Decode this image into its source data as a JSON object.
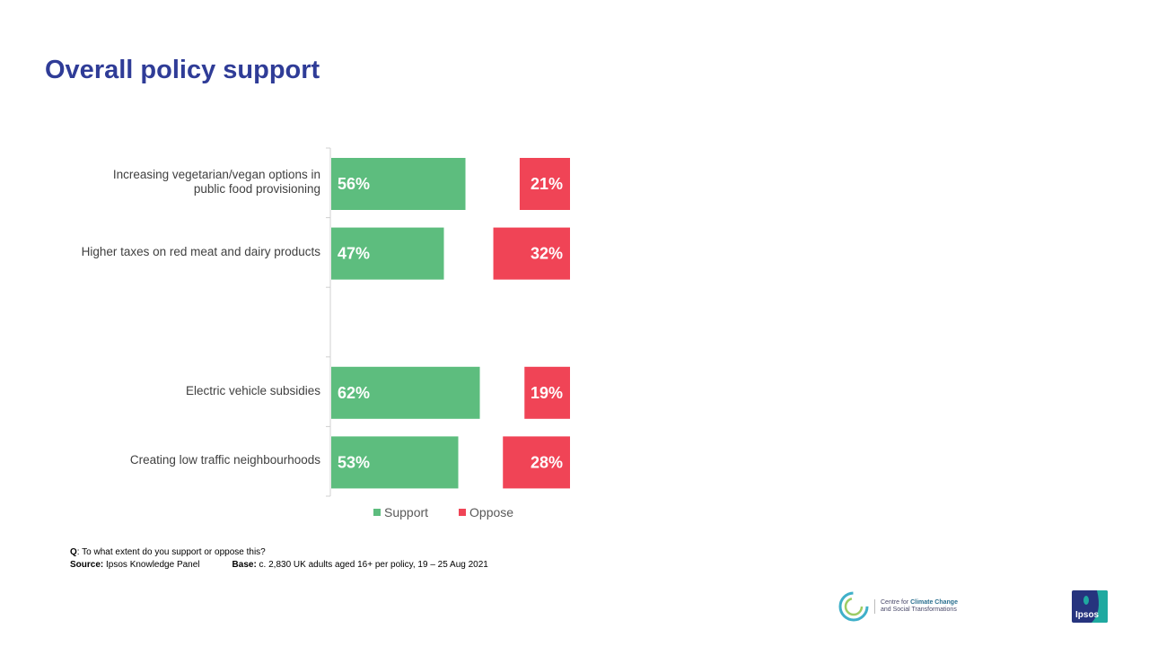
{
  "page": {
    "title": "Overall policy support"
  },
  "chart_data": {
    "type": "bar",
    "orientation": "horizontal",
    "categories": [
      "Increasing vegetarian/vegan options in public food provisioning",
      "Higher taxes on red meat and dairy products",
      "",
      "Electric vehicle subsidies",
      "Creating low traffic neighbourhoods"
    ],
    "category_lines": [
      [
        "Increasing vegetarian/vegan options in",
        "public food provisioning"
      ],
      [
        "Higher taxes on red meat and dairy products"
      ],
      [],
      [
        "Electric vehicle subsidies"
      ],
      [
        "Creating low traffic neighbourhoods"
      ]
    ],
    "series": [
      {
        "name": "Support",
        "values": [
          56,
          47,
          null,
          62,
          53
        ],
        "color": "#5dbd7e"
      },
      {
        "name": "Oppose",
        "values": [
          21,
          32,
          null,
          19,
          28
        ],
        "color": "#f04456"
      }
    ],
    "value_labels": {
      "support": [
        "56%",
        "47%",
        "",
        "62%",
        "53%"
      ],
      "oppose": [
        "21%",
        "32%",
        "",
        "19%",
        "28%"
      ]
    },
    "xlim": [
      0,
      100
    ],
    "legend": "bottom",
    "grid": false
  },
  "notes": {
    "q_label": "Q",
    "q_text": ": To  what extent do you support or oppose this?",
    "source_label": "Source:",
    "source_text": " Ipsos Knowledge Panel",
    "base_label": "Base:",
    "base_text": " c. 2,830 UK adults aged 16+ per policy,  19 – 25 Aug 2021"
  },
  "logos": {
    "ccc_prefix": "Centre for ",
    "ccc_bold": "Climate Change",
    "ccc_line2": "and Social Transformations",
    "ipsos": "Ipsos"
  }
}
